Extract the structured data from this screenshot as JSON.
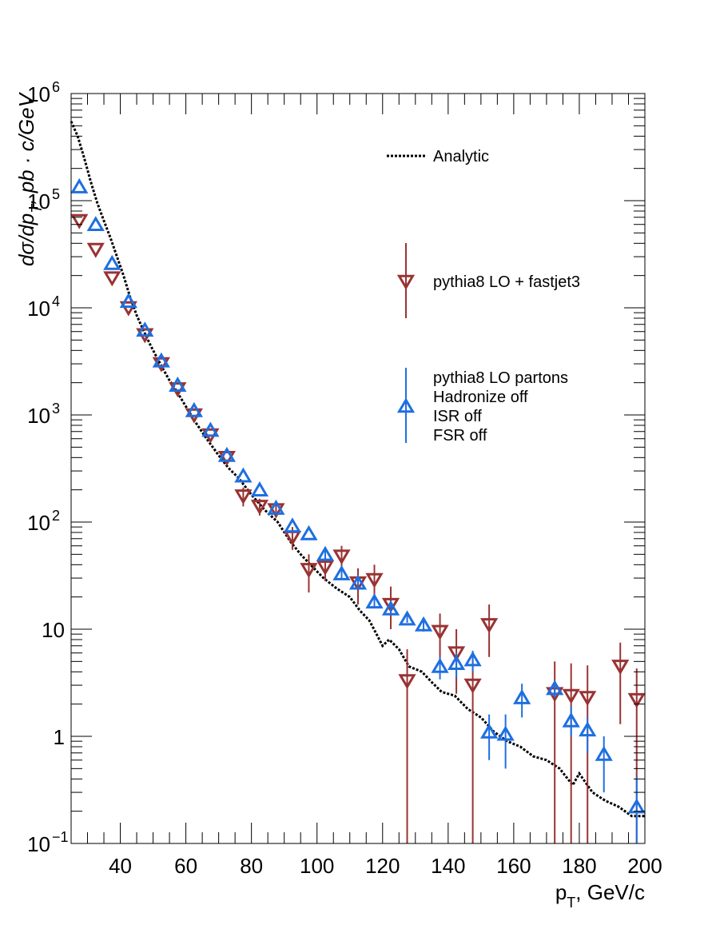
{
  "chart_data": {
    "type": "scatter",
    "xlabel": "p_{T}, GeV/c",
    "ylabel": "dσ/dp_{T}, pb · c/GeV",
    "xlim": [
      25,
      200
    ],
    "ylim": [
      0.1,
      1000000
    ],
    "yscale": "log",
    "grid": false,
    "legend_position": "top-right",
    "x_ticks": [
      40,
      60,
      80,
      100,
      120,
      140,
      160,
      180,
      200
    ],
    "y_ticks": [
      {
        "value": 0.1,
        "base": "10",
        "exp": "−1"
      },
      {
        "value": 1,
        "base": "1",
        "exp": ""
      },
      {
        "value": 10,
        "base": "10",
        "exp": ""
      },
      {
        "value": 100,
        "base": "10",
        "exp": "2"
      },
      {
        "value": 1000,
        "base": "10",
        "exp": "3"
      },
      {
        "value": 10000,
        "base": "10",
        "exp": "4"
      },
      {
        "value": 100000,
        "base": "10",
        "exp": "5"
      },
      {
        "value": 1000000,
        "base": "10",
        "exp": "6"
      }
    ],
    "series": [
      {
        "name": "Analytic",
        "kind": "dotted-line",
        "color": "#000000",
        "points": [
          [
            25,
            550000
          ],
          [
            27,
            400000
          ],
          [
            29,
            250000
          ],
          [
            31,
            150000
          ],
          [
            33,
            95000
          ],
          [
            35,
            65000
          ],
          [
            37,
            45000
          ],
          [
            39,
            30000
          ],
          [
            41,
            20000
          ],
          [
            43,
            12500
          ],
          [
            45,
            8500
          ],
          [
            47,
            6200
          ],
          [
            49,
            4600
          ],
          [
            51,
            3500
          ],
          [
            53,
            2700
          ],
          [
            55,
            2100
          ],
          [
            57,
            1700
          ],
          [
            60,
            1200
          ],
          [
            63,
            850
          ],
          [
            66,
            620
          ],
          [
            70,
            420
          ],
          [
            73,
            320
          ],
          [
            76,
            260
          ],
          [
            80,
            180
          ],
          [
            84,
            130
          ],
          [
            88,
            100
          ],
          [
            92,
            65
          ],
          [
            95,
            50
          ],
          [
            98,
            40
          ],
          [
            102,
            30
          ],
          [
            106,
            24
          ],
          [
            110,
            20
          ],
          [
            113,
            15
          ],
          [
            116,
            12
          ],
          [
            120,
            7
          ],
          [
            122,
            8
          ],
          [
            125,
            6.5
          ],
          [
            128,
            4.5
          ],
          [
            132,
            4
          ],
          [
            135,
            3.2
          ],
          [
            138,
            2.6
          ],
          [
            142,
            2.4
          ],
          [
            146,
            1.8
          ],
          [
            150,
            1.5
          ],
          [
            154,
            1.1
          ],
          [
            158,
            0.9
          ],
          [
            162,
            0.8
          ],
          [
            166,
            0.65
          ],
          [
            170,
            0.6
          ],
          [
            174,
            0.5
          ],
          [
            178,
            0.35
          ],
          [
            180,
            0.45
          ],
          [
            184,
            0.3
          ],
          [
            188,
            0.25
          ],
          [
            192,
            0.22
          ],
          [
            196,
            0.18
          ],
          [
            200,
            0.18
          ]
        ]
      },
      {
        "name": "pythia8 LO + fastjet3",
        "kind": "marker-down-triangle",
        "color": "#993333",
        "points": [
          {
            "x": 27.5,
            "y": 65000,
            "lo": 65000,
            "hi": 65000
          },
          {
            "x": 32.5,
            "y": 35000,
            "lo": 35000,
            "hi": 35000
          },
          {
            "x": 37.5,
            "y": 19000,
            "lo": 19000,
            "hi": 19000
          },
          {
            "x": 42.5,
            "y": 10000,
            "lo": 10000,
            "hi": 10000
          },
          {
            "x": 47.5,
            "y": 5600,
            "lo": 5600,
            "hi": 5600
          },
          {
            "x": 52.5,
            "y": 3000,
            "lo": 3000,
            "hi": 3000
          },
          {
            "x": 57.5,
            "y": 1750,
            "lo": 1750,
            "hi": 1750
          },
          {
            "x": 62.5,
            "y": 1000,
            "lo": 1000,
            "hi": 1000
          },
          {
            "x": 67.5,
            "y": 650,
            "lo": 650,
            "hi": 650
          },
          {
            "x": 72.5,
            "y": 400,
            "lo": 400,
            "hi": 400
          },
          {
            "x": 77.5,
            "y": 175,
            "lo": 140,
            "hi": 210
          },
          {
            "x": 82.5,
            "y": 140,
            "lo": 115,
            "hi": 165
          },
          {
            "x": 87.5,
            "y": 130,
            "lo": 110,
            "hi": 155
          },
          {
            "x": 92.5,
            "y": 72,
            "lo": 55,
            "hi": 90
          },
          {
            "x": 97.5,
            "y": 36,
            "lo": 22,
            "hi": 50
          },
          {
            "x": 102.5,
            "y": 38,
            "lo": 28,
            "hi": 50
          },
          {
            "x": 107.5,
            "y": 48,
            "lo": 37,
            "hi": 60
          },
          {
            "x": 112.5,
            "y": 27,
            "lo": 17,
            "hi": 37
          },
          {
            "x": 117.5,
            "y": 29,
            "lo": 20,
            "hi": 40
          },
          {
            "x": 122.5,
            "y": 17,
            "lo": 10,
            "hi": 25
          },
          {
            "x": 127.5,
            "y": 3.3,
            "lo": 0.1,
            "hi": 6.5
          },
          {
            "x": 137.5,
            "y": 9.5,
            "lo": 5,
            "hi": 14
          },
          {
            "x": 142.5,
            "y": 6,
            "lo": 2.5,
            "hi": 10
          },
          {
            "x": 147.5,
            "y": 3,
            "lo": 0.1,
            "hi": 6
          },
          {
            "x": 152.5,
            "y": 11,
            "lo": 5.5,
            "hi": 17
          },
          {
            "x": 172.5,
            "y": 2.5,
            "lo": 0.1,
            "hi": 5
          },
          {
            "x": 177.5,
            "y": 2.4,
            "lo": 0.1,
            "hi": 4.8
          },
          {
            "x": 182.5,
            "y": 2.3,
            "lo": 0.1,
            "hi": 4.6
          },
          {
            "x": 192.5,
            "y": 4.5,
            "lo": 1.3,
            "hi": 7.5
          },
          {
            "x": 197.5,
            "y": 2.2,
            "lo": 0.1,
            "hi": 4.3
          }
        ]
      },
      {
        "name": "pythia8 LO partons",
        "name_lines": [
          "pythia8 LO partons",
          "Hadronize off",
          "ISR off",
          "FSR off"
        ],
        "kind": "marker-up-triangle",
        "color": "#1e6fe0",
        "points": [
          {
            "x": 27.5,
            "y": 135000,
            "lo": 135000,
            "hi": 135000
          },
          {
            "x": 32.5,
            "y": 60000,
            "lo": 60000,
            "hi": 60000
          },
          {
            "x": 37.5,
            "y": 26000,
            "lo": 26000,
            "hi": 26000
          },
          {
            "x": 42.5,
            "y": 11500,
            "lo": 11500,
            "hi": 11500
          },
          {
            "x": 47.5,
            "y": 6200,
            "lo": 6200,
            "hi": 6200
          },
          {
            "x": 52.5,
            "y": 3200,
            "lo": 3200,
            "hi": 3200
          },
          {
            "x": 57.5,
            "y": 1900,
            "lo": 1900,
            "hi": 1900
          },
          {
            "x": 62.5,
            "y": 1100,
            "lo": 1100,
            "hi": 1100
          },
          {
            "x": 67.5,
            "y": 720,
            "lo": 720,
            "hi": 720
          },
          {
            "x": 72.5,
            "y": 420,
            "lo": 420,
            "hi": 420
          },
          {
            "x": 77.5,
            "y": 270,
            "lo": 270,
            "hi": 270
          },
          {
            "x": 82.5,
            "y": 200,
            "lo": 200,
            "hi": 200
          },
          {
            "x": 87.5,
            "y": 135,
            "lo": 135,
            "hi": 135
          },
          {
            "x": 92.5,
            "y": 92,
            "lo": 92,
            "hi": 92
          },
          {
            "x": 97.5,
            "y": 78,
            "lo": 78,
            "hi": 78
          },
          {
            "x": 102.5,
            "y": 50,
            "lo": 45,
            "hi": 55
          },
          {
            "x": 107.5,
            "y": 33,
            "lo": 30,
            "hi": 36
          },
          {
            "x": 112.5,
            "y": 27,
            "lo": 24,
            "hi": 30
          },
          {
            "x": 117.5,
            "y": 18,
            "lo": 16,
            "hi": 20
          },
          {
            "x": 122.5,
            "y": 15.5,
            "lo": 13.5,
            "hi": 17.5
          },
          {
            "x": 127.5,
            "y": 12.5,
            "lo": 11.5,
            "hi": 13.5
          },
          {
            "x": 132.5,
            "y": 11,
            "lo": 9.5,
            "hi": 12.5
          },
          {
            "x": 137.5,
            "y": 4.5,
            "lo": 3.4,
            "hi": 5.5
          },
          {
            "x": 142.5,
            "y": 4.8,
            "lo": 3.5,
            "hi": 6
          },
          {
            "x": 147.5,
            "y": 5.2,
            "lo": 4,
            "hi": 6.3
          },
          {
            "x": 152.5,
            "y": 1.1,
            "lo": 0.6,
            "hi": 1.6
          },
          {
            "x": 157.5,
            "y": 1.05,
            "lo": 0.5,
            "hi": 1.6
          },
          {
            "x": 162.5,
            "y": 2.3,
            "lo": 1.5,
            "hi": 3.1
          },
          {
            "x": 172.5,
            "y": 2.8,
            "lo": 2.3,
            "hi": 3.2
          },
          {
            "x": 177.5,
            "y": 1.4,
            "lo": 1.0,
            "hi": 1.9
          },
          {
            "x": 182.5,
            "y": 1.15,
            "lo": 0.7,
            "hi": 1.5
          },
          {
            "x": 187.5,
            "y": 0.68,
            "lo": 0.3,
            "hi": 1.0
          },
          {
            "x": 197.5,
            "y": 0.22,
            "lo": 0.1,
            "hi": 0.42
          }
        ]
      }
    ]
  }
}
